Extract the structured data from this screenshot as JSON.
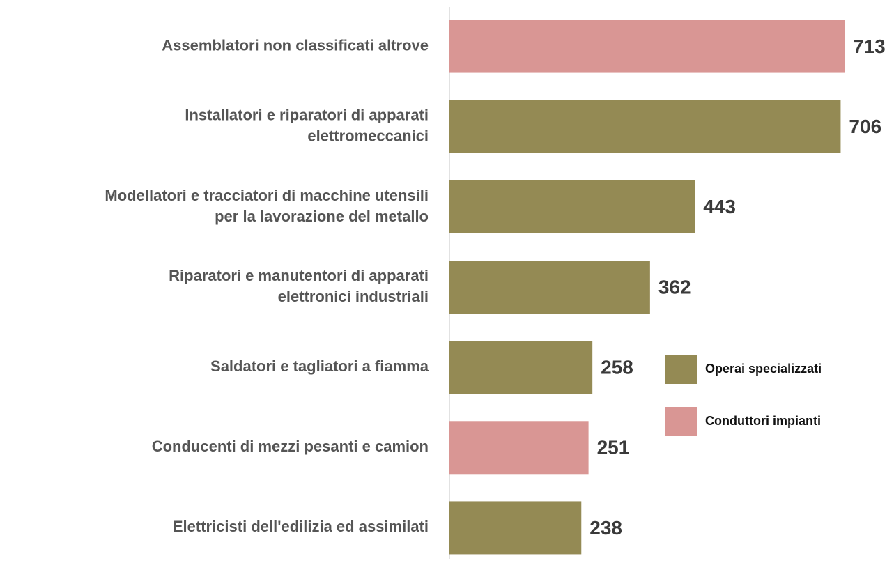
{
  "chart_data": {
    "type": "bar",
    "orientation": "horizontal",
    "categories": [
      "Assemblatori non classificati altrove",
      "Installatori e riparatori di apparati\nelettromeccanici",
      "Modellatori e tracciatori di macchine utensili\nper la lavorazione del metallo",
      "Riparatori e manutentori di apparati\nelettronici industriali",
      "Saldatori e tagliatori a fiamma",
      "Conducenti di mezzi pesanti e camion",
      "Elettricisti dell'edilizia ed assimilati"
    ],
    "series": [
      {
        "name": "Operai specializzati",
        "color": "#948A54",
        "values": [
          null,
          706,
          443,
          362,
          258,
          null,
          238
        ]
      },
      {
        "name": "Conduttori impianti",
        "color": "#D99694",
        "values": [
          713,
          null,
          null,
          null,
          null,
          251,
          null
        ]
      }
    ],
    "legend": "right"
  }
}
